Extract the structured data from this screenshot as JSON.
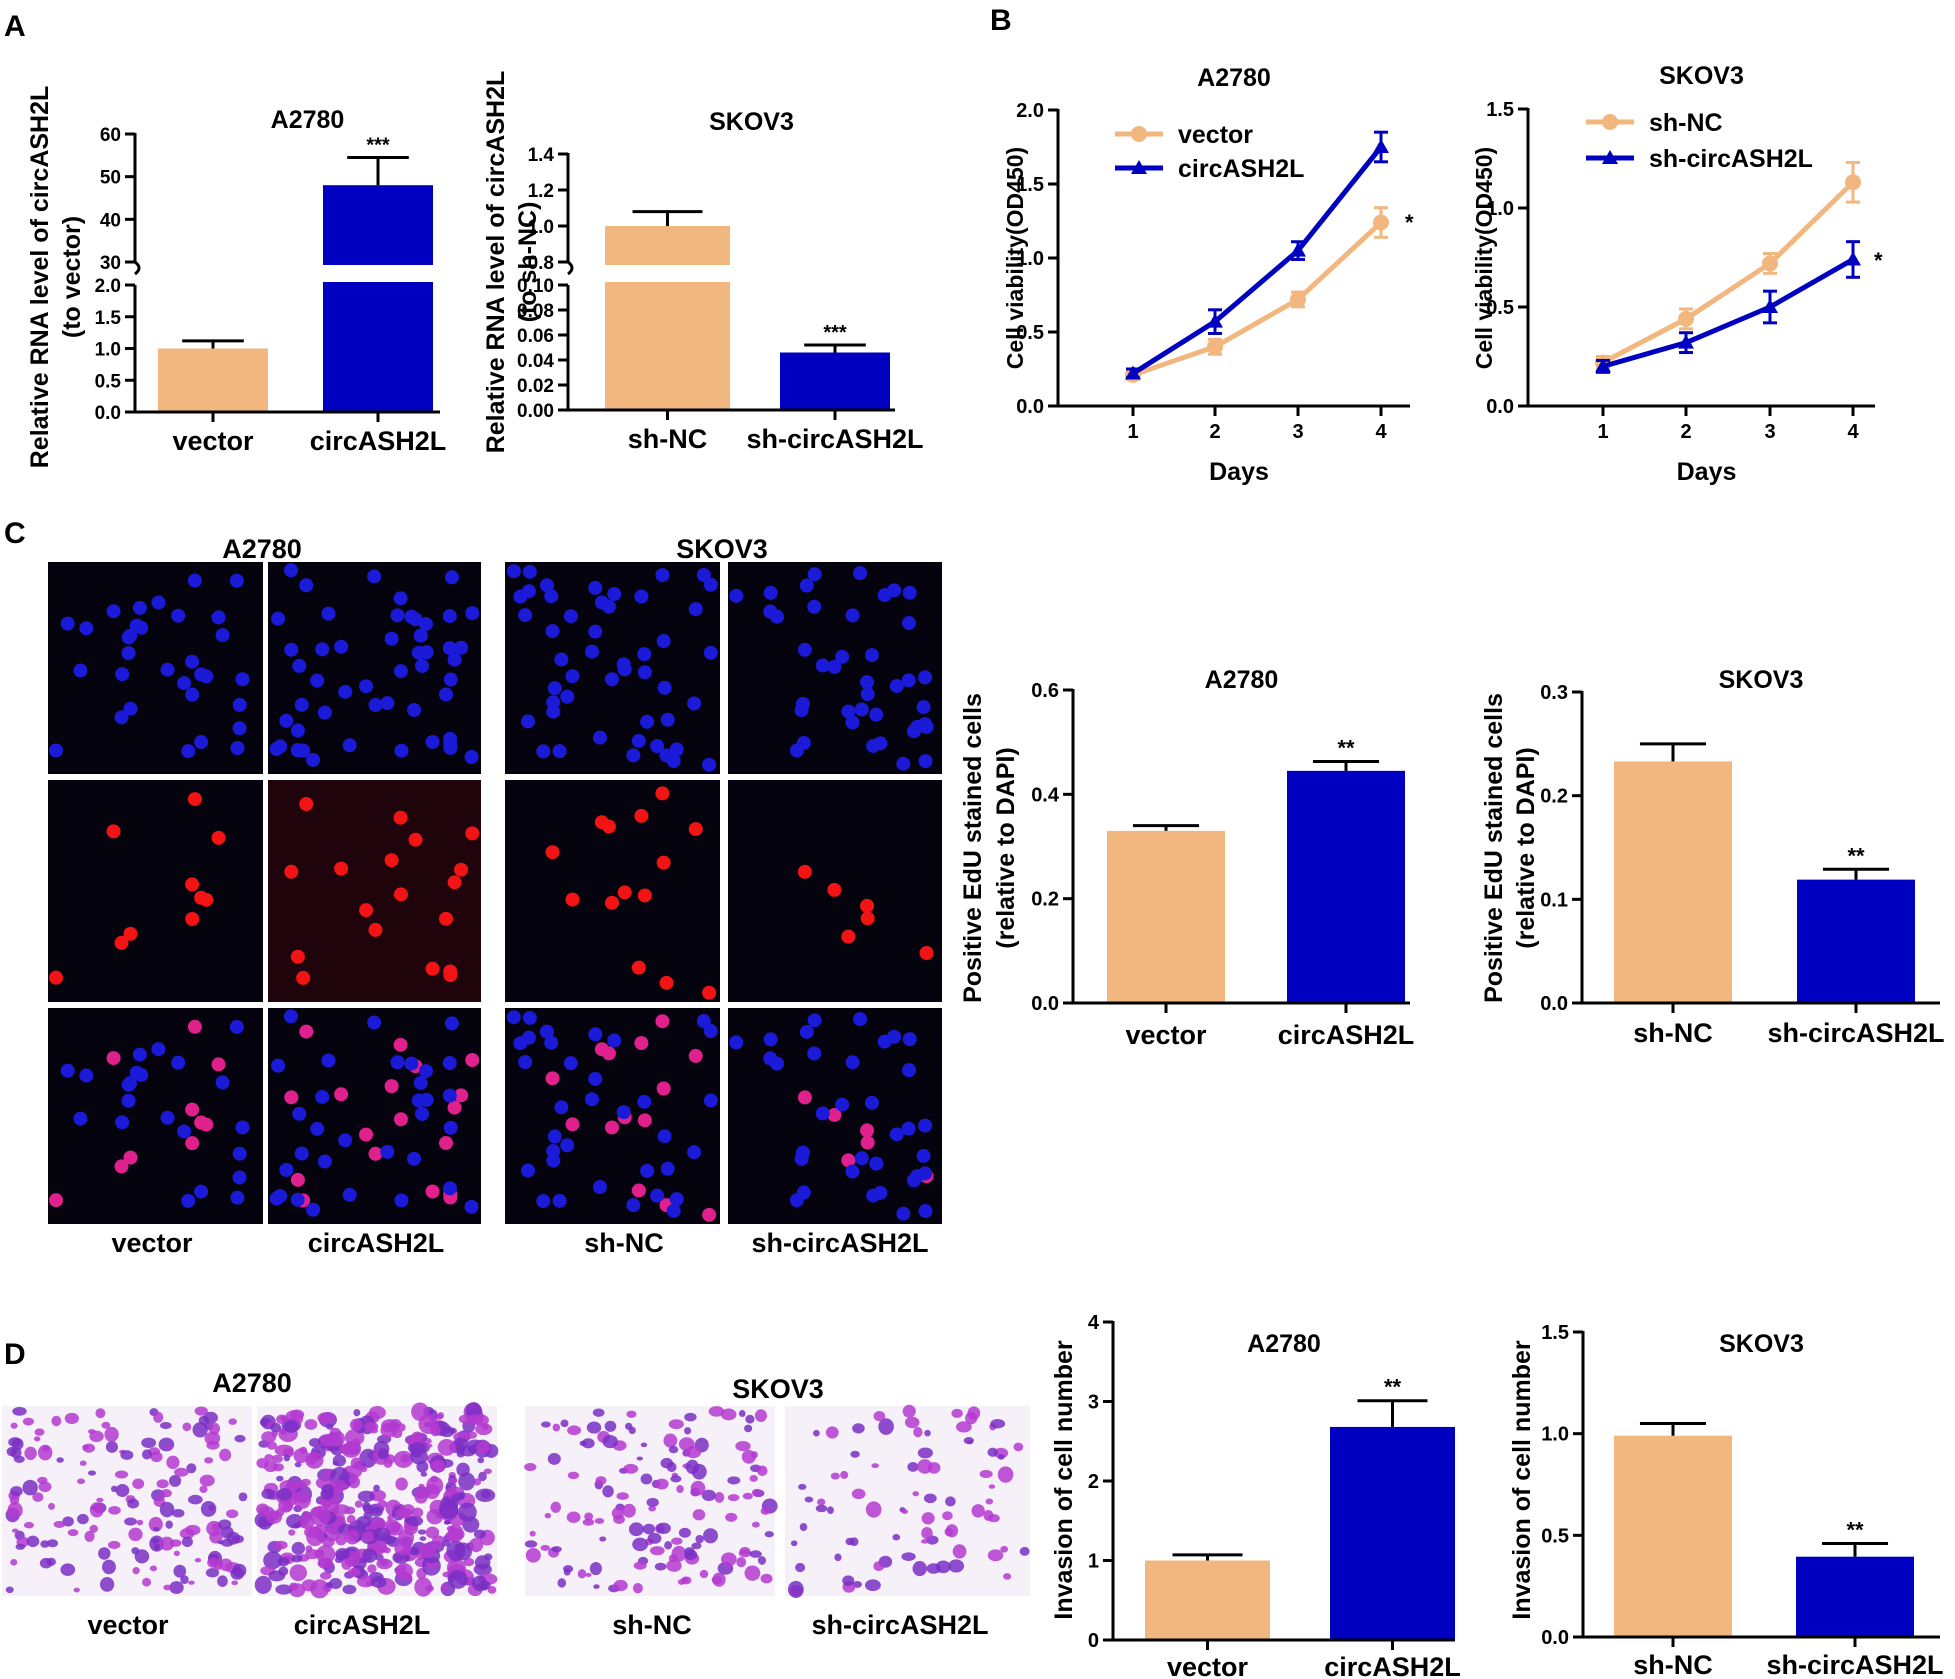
{
  "panel_letters": [
    "A",
    "B",
    "C",
    "D"
  ],
  "colors": {
    "orange": "#F2B77E",
    "blue": "#0000C0",
    "ink": "#000000",
    "microscope_bg": "#05040e",
    "transwell_bg": "#f6f0f8"
  },
  "chart_data": [
    {
      "id": "A1",
      "type": "bar",
      "title": "A2780",
      "ylabel": "Relative RNA level of circASH2L",
      "ylabel2": "(to vector)",
      "categories": [
        "vector",
        "circASH2L"
      ],
      "values": [
        1.0,
        48.0
      ],
      "errors": [
        0.12,
        6.5
      ],
      "broken_axis": true,
      "segments": [
        {
          "ylim": [
            0,
            2.0
          ],
          "ticks": [
            "0.0",
            "0.5",
            "1.0",
            "1.5",
            "2.0"
          ]
        },
        {
          "ylim": [
            30,
            60
          ],
          "ticks": [
            "30",
            "40",
            "50",
            "60"
          ]
        }
      ],
      "significance": [
        "",
        "***"
      ]
    },
    {
      "id": "A2",
      "type": "bar",
      "title": "SKOV3",
      "ylabel": "Relative RNA level of circASH2L",
      "ylabel2": "(to sh-NC)",
      "categories": [
        "sh-NC",
        "sh-circASH2L"
      ],
      "values": [
        1.0,
        0.046
      ],
      "errors": [
        0.08,
        0.006
      ],
      "broken_axis": true,
      "segments": [
        {
          "ylim": [
            0,
            0.1
          ],
          "ticks": [
            "0.00",
            "0.02",
            "0.04",
            "0.06",
            "0.08",
            "0.10"
          ]
        },
        {
          "ylim": [
            0.8,
            1.4
          ],
          "ticks": [
            "0.8",
            "1.0",
            "1.2",
            "1.4"
          ]
        }
      ],
      "significance": [
        "",
        "***"
      ]
    },
    {
      "id": "B1",
      "type": "line",
      "title": "A2780",
      "xlabel": "Days",
      "ylabel": "Cell viability(OD450)",
      "x": [
        1,
        2,
        3,
        4
      ],
      "xticks": [
        "1",
        "2",
        "3",
        "4"
      ],
      "ylim": [
        0,
        2.0
      ],
      "yticks": [
        "0.0",
        "0.5",
        "1.0",
        "1.5",
        "2.0"
      ],
      "series": [
        {
          "name": "vector",
          "values": [
            0.21,
            0.4,
            0.72,
            1.24
          ],
          "errors": [
            0.03,
            0.05,
            0.05,
            0.1
          ]
        },
        {
          "name": "circASH2L",
          "values": [
            0.22,
            0.57,
            1.05,
            1.75
          ],
          "errors": [
            0.03,
            0.08,
            0.06,
            0.1
          ]
        }
      ],
      "annotation": "*"
    },
    {
      "id": "B2",
      "type": "line",
      "title": "SKOV3",
      "xlabel": "Days",
      "ylabel": "Cell viability(OD450)",
      "x": [
        1,
        2,
        3,
        4
      ],
      "xticks": [
        "1",
        "2",
        "3",
        "4"
      ],
      "ylim": [
        0,
        1.5
      ],
      "yticks": [
        "0.0",
        "0.5",
        "1.0",
        "1.5"
      ],
      "series": [
        {
          "name": "sh-NC",
          "values": [
            0.22,
            0.44,
            0.72,
            1.13
          ],
          "errors": [
            0.03,
            0.05,
            0.05,
            0.1
          ]
        },
        {
          "name": "sh-circASH2L",
          "values": [
            0.2,
            0.32,
            0.5,
            0.74
          ],
          "errors": [
            0.03,
            0.05,
            0.08,
            0.09
          ]
        }
      ],
      "annotation": "*"
    },
    {
      "id": "C1",
      "type": "bar",
      "title": "A2780",
      "ylabel": "Positive EdU stained cells",
      "ylabel2": "(relative to DAPI)",
      "categories": [
        "vector",
        "circASH2L"
      ],
      "values": [
        0.33,
        0.445
      ],
      "errors": [
        0.01,
        0.018
      ],
      "ylim": [
        0,
        0.6
      ],
      "yticks": [
        "0.0",
        "0.2",
        "0.4",
        "0.6"
      ],
      "significance": [
        "",
        "**"
      ]
    },
    {
      "id": "C2",
      "type": "bar",
      "title": "SKOV3",
      "ylabel": "Positive EdU stained cells",
      "ylabel2": "(relative to DAPI)",
      "categories": [
        "sh-NC",
        "sh-circASH2L"
      ],
      "values": [
        0.233,
        0.119
      ],
      "errors": [
        0.017,
        0.01
      ],
      "ylim": [
        0,
        0.3
      ],
      "yticks": [
        "0.0",
        "0.1",
        "0.2",
        "0.3"
      ],
      "significance": [
        "",
        "**"
      ]
    },
    {
      "id": "D1",
      "type": "bar",
      "title": "A2780",
      "ylabel": "Invasion of cell number",
      "categories": [
        "vector",
        "circASH2L"
      ],
      "values": [
        1.0,
        2.68
      ],
      "errors": [
        0.07,
        0.33
      ],
      "ylim": [
        0,
        4
      ],
      "yticks": [
        "0",
        "1",
        "2",
        "3",
        "4"
      ],
      "significance": [
        "",
        "**"
      ]
    },
    {
      "id": "D2",
      "type": "bar",
      "title": "SKOV3",
      "ylabel": "Invasion of cell number",
      "categories": [
        "sh-NC",
        "sh-circASH2L"
      ],
      "values": [
        0.99,
        0.395
      ],
      "errors": [
        0.06,
        0.065
      ],
      "ylim": [
        0,
        1.5
      ],
      "yticks": [
        "0.0",
        "0.5",
        "1.0",
        "1.5"
      ],
      "significance": [
        "",
        "**"
      ]
    }
  ],
  "panel_c_images": {
    "titles": [
      "A2780",
      "SKOV3"
    ],
    "labels": [
      "vector",
      "circASH2L",
      "sh-NC",
      "sh-circASH2L"
    ]
  },
  "panel_d_images": {
    "titles": [
      "A2780",
      "SKOV3"
    ],
    "labels": [
      "vector",
      "circASH2L",
      "sh-NC",
      "sh-circASH2L"
    ]
  }
}
